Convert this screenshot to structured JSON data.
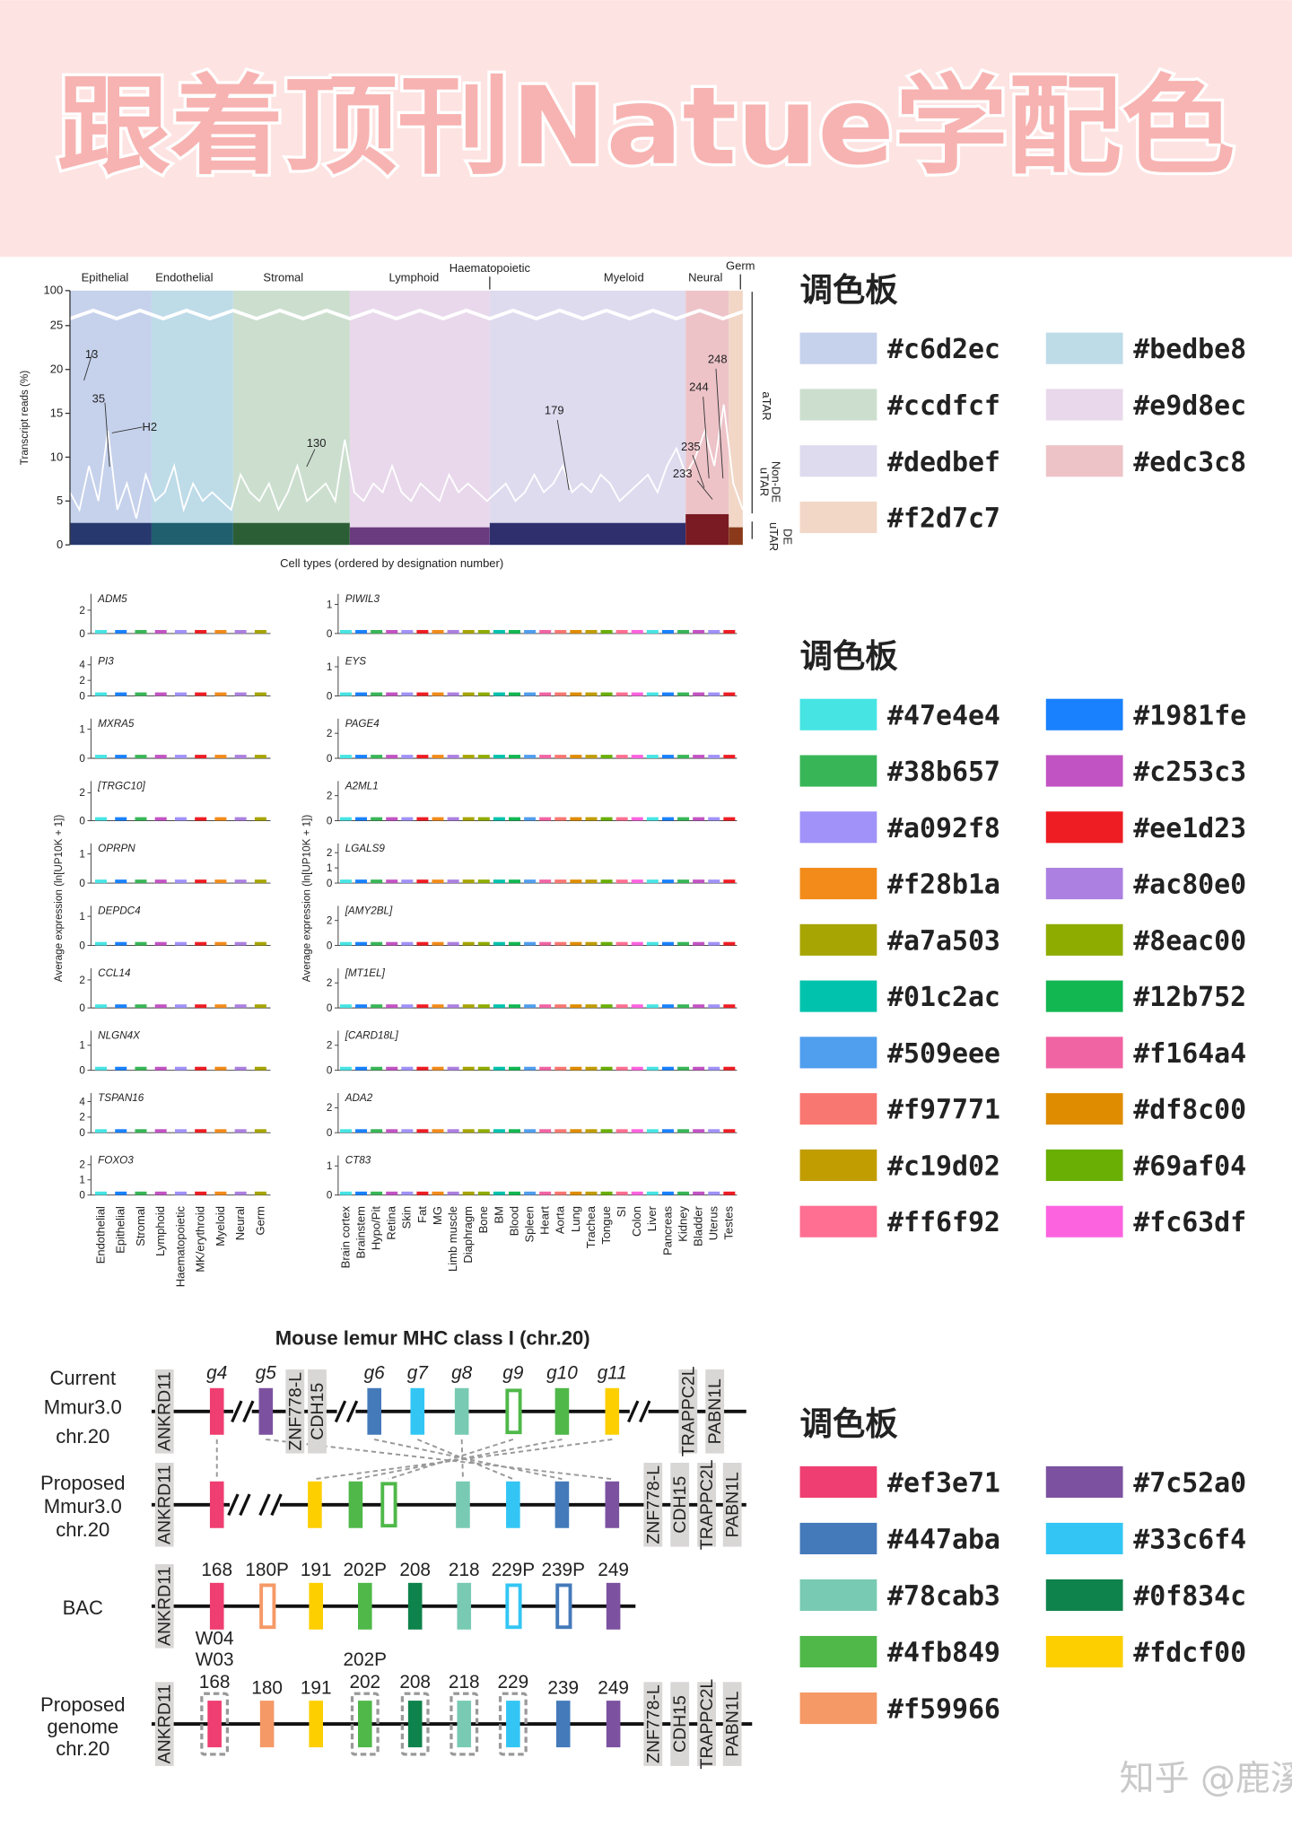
{
  "header": {
    "title": "跟着顶刊Natue学配色"
  },
  "chart_data": {
    "type": "line",
    "ylabel": "Transcript reads (%)",
    "xlabel": "Cell types (ordered by designation number)",
    "ylim": [
      0,
      100
    ],
    "axis_break": [
      25,
      100
    ],
    "yticks": [
      0,
      5,
      10,
      15,
      20,
      25,
      100
    ],
    "bands": [
      {
        "name": "Epithelial",
        "color": "#c6d2ec",
        "dark": "#26386e",
        "base": 2.5
      },
      {
        "name": "Endothelial",
        "color": "#bedbe8",
        "dark": "#1f5f6e",
        "base": 2.5
      },
      {
        "name": "Stromal",
        "color": "#ccdfcf",
        "dark": "#2c5e36",
        "base": 2.5
      },
      {
        "name": "Lymphoid",
        "color": "#e9d8ec",
        "dark": "#6a3b7e",
        "base": 2
      },
      {
        "name": "Myeloid",
        "color": "#dedbef",
        "dark": "#2f2f6e",
        "base": 2.5
      },
      {
        "name": "Neural",
        "color": "#edc3c8",
        "dark": "#7a1a22",
        "base": 3.5
      },
      {
        "name": "Germ",
        "color": "#f2d7c7",
        "dark": "#8a3a1a",
        "base": 2
      }
    ],
    "top_label": "Haematopoietic",
    "annotations": [
      "13",
      "35",
      "H2",
      "130",
      "179",
      "235",
      "233",
      "244",
      "248"
    ],
    "side_labels": [
      "aTAR",
      "Non-DE",
      "uTAR",
      "DE",
      "uTAR"
    ],
    "series": [
      {
        "color": "#ffffff",
        "values": [
          6,
          4,
          9,
          5,
          13,
          4,
          7,
          3,
          8,
          5,
          6,
          9,
          4,
          7,
          5,
          6,
          5,
          4,
          8,
          6,
          5,
          7,
          4,
          6,
          9,
          5,
          6,
          7,
          5,
          12,
          6,
          5,
          7,
          6,
          9,
          6,
          5,
          7,
          6,
          5,
          8,
          6,
          7,
          6,
          5,
          6,
          7,
          5,
          6,
          8,
          6,
          7,
          9,
          6,
          7,
          6,
          8,
          7,
          5,
          6,
          7,
          8,
          6,
          9,
          11,
          8,
          10,
          13,
          9,
          16,
          7,
          4
        ]
      }
    ]
  },
  "strips": {
    "ylabel": "Average expression (ln[UP10K + 1])",
    "left": {
      "categories": [
        "Endothelial",
        "Epithelial",
        "Stromal",
        "Lymphoid",
        "Haematopoietic",
        "MK/erythroid",
        "Myeloid",
        "Neural",
        "Germ"
      ],
      "genes": [
        {
          "name": "ADM5",
          "ylim": [
            0,
            3
          ],
          "yticks": [
            0,
            2
          ]
        },
        {
          "name": "PI3",
          "ylim": [
            0,
            4.5
          ],
          "yticks": [
            0,
            2,
            4
          ]
        },
        {
          "name": "MXRA5",
          "ylim": [
            0,
            1.2
          ],
          "yticks": [
            0,
            1
          ]
        },
        {
          "name": "[TRGC10]",
          "ylim": [
            0,
            2.5
          ],
          "yticks": [
            0,
            2
          ]
        },
        {
          "name": "OPRPN",
          "ylim": [
            0,
            1.2
          ],
          "yticks": [
            0,
            1
          ]
        },
        {
          "name": "DEPDC4",
          "ylim": [
            0,
            1.2
          ],
          "yticks": [
            0,
            1
          ]
        },
        {
          "name": "CCL14",
          "ylim": [
            0,
            2.5
          ],
          "yticks": [
            0,
            2
          ]
        },
        {
          "name": "NLGN4X",
          "ylim": [
            0,
            1.4
          ],
          "yticks": [
            0,
            1
          ]
        },
        {
          "name": "TSPAN16",
          "ylim": [
            0,
            4.5
          ],
          "yticks": [
            0,
            2,
            4
          ]
        },
        {
          "name": "FOXO3",
          "ylim": [
            0,
            2.3
          ],
          "yticks": [
            0,
            1,
            2
          ]
        }
      ]
    },
    "right": {
      "categories": [
        "Brain cortex",
        "Brainstem",
        "Hypo/Pit",
        "Retina",
        "Skin",
        "Fat",
        "MG",
        "Limb muscle",
        "Diaphragm",
        "Bone",
        "BM",
        "Blood",
        "Spleen",
        "Heart",
        "Aorta",
        "Lung",
        "Trachea",
        "Tongue",
        "SI",
        "Colon",
        "Liver",
        "Pancreas",
        "Kidney",
        "Bladder",
        "Uterus",
        "Testes"
      ],
      "genes": [
        {
          "name": "PIWIL3",
          "ylim": [
            0,
            1.2
          ],
          "yticks": [
            0,
            1
          ]
        },
        {
          "name": "EYS",
          "ylim": [
            0,
            1.2
          ],
          "yticks": [
            0,
            1
          ]
        },
        {
          "name": "PAGE4",
          "ylim": [
            0,
            2.8
          ],
          "yticks": [
            0,
            2
          ]
        },
        {
          "name": "A2ML1",
          "ylim": [
            0,
            2.8
          ],
          "yticks": [
            0,
            2
          ]
        },
        {
          "name": "LGALS9",
          "ylim": [
            0,
            2.3
          ],
          "yticks": [
            0,
            1,
            2
          ]
        },
        {
          "name": "[AMY2BL]",
          "ylim": [
            0,
            2.8
          ],
          "yticks": [
            0,
            2
          ]
        },
        {
          "name": "[MT1EL]",
          "ylim": [
            0,
            2.8
          ],
          "yticks": [
            0,
            2
          ]
        },
        {
          "name": "[CARD18L]",
          "ylim": [
            0,
            2.8
          ],
          "yticks": [
            0,
            2
          ]
        },
        {
          "name": "ADA2",
          "ylim": [
            0,
            2.8
          ],
          "yticks": [
            0,
            2
          ]
        },
        {
          "name": "CT83",
          "ylim": [
            0,
            1.2
          ],
          "yticks": [
            0,
            1
          ]
        }
      ]
    }
  },
  "diagram": {
    "title": "Mouse lemur MHC class I (chr.20)",
    "rows": [
      {
        "label": [
          "Current",
          "Mmur3.0",
          "chr.20"
        ],
        "items": [
          {
            "kind": "gray",
            "label": "ANKRD11"
          },
          {
            "kind": "gene",
            "label": "g4",
            "color": "#ef3e71"
          },
          {
            "kind": "break"
          },
          {
            "kind": "gene",
            "label": "g5",
            "color": "#7c52a0"
          },
          {
            "kind": "gray",
            "label": "ZNF778-L"
          },
          {
            "kind": "gray",
            "label": "CDH15"
          },
          {
            "kind": "break"
          },
          {
            "kind": "gene",
            "label": "g6",
            "color": "#447aba"
          },
          {
            "kind": "gene",
            "label": "g7",
            "color": "#33c6f4"
          },
          {
            "kind": "gene",
            "label": "g8",
            "color": "#78cab3"
          },
          {
            "kind": "gene",
            "label": "g9",
            "color": "#4fb849",
            "style": "outline"
          },
          {
            "kind": "gene",
            "label": "g10",
            "color": "#4fb849"
          },
          {
            "kind": "gene",
            "label": "g11",
            "color": "#fdcf00"
          },
          {
            "kind": "break"
          },
          {
            "kind": "gray",
            "label": "TRAPPC2L"
          },
          {
            "kind": "gray",
            "label": "PABN1L"
          }
        ]
      },
      {
        "label": [
          "Proposed",
          "Mmur3.0",
          "chr.20"
        ],
        "items": [
          {
            "kind": "gray",
            "label": "ANKRD11"
          },
          {
            "kind": "gene",
            "color": "#ef3e71"
          },
          {
            "kind": "break"
          },
          {
            "kind": "break"
          },
          {
            "kind": "gene",
            "color": "#fdcf00"
          },
          {
            "kind": "gene",
            "color": "#4fb849"
          },
          {
            "kind": "gene",
            "color": "#4fb849",
            "style": "outline"
          },
          {
            "kind": "gene",
            "color": "#78cab3"
          },
          {
            "kind": "gene",
            "color": "#33c6f4"
          },
          {
            "kind": "gene",
            "color": "#447aba"
          },
          {
            "kind": "gene",
            "color": "#7c52a0"
          },
          {
            "kind": "gray",
            "label": "ZNF778-L"
          },
          {
            "kind": "gray",
            "label": "CDH15"
          },
          {
            "kind": "gray",
            "label": "TRAPPC2L"
          },
          {
            "kind": "gray",
            "label": "PABN1L"
          }
        ]
      },
      {
        "label": [
          "BAC"
        ],
        "items": [
          {
            "kind": "gray",
            "label": "ANKRD11"
          },
          {
            "kind": "gene",
            "label": "168",
            "color": "#ef3e71"
          },
          {
            "kind": "gene",
            "label": "180P",
            "color": "#f59966",
            "style": "outline"
          },
          {
            "kind": "gene",
            "label": "191",
            "color": "#fdcf00"
          },
          {
            "kind": "gene",
            "label": "202P",
            "color": "#4fb849"
          },
          {
            "kind": "gene",
            "label": "208",
            "color": "#0f834c"
          },
          {
            "kind": "gene",
            "label": "218",
            "color": "#78cab3"
          },
          {
            "kind": "gene",
            "label": "229P",
            "color": "#33c6f4",
            "style": "outline"
          },
          {
            "kind": "gene",
            "label": "239P",
            "color": "#447aba",
            "style": "outline"
          },
          {
            "kind": "gene",
            "label": "249",
            "color": "#7c52a0"
          }
        ]
      },
      {
        "label": [
          "Proposed",
          "genome",
          "chr.20"
        ],
        "items": [
          {
            "kind": "gray",
            "label": "ANKRD11"
          },
          {
            "kind": "gene",
            "label": "168",
            "color": "#ef3e71",
            "boxed": true,
            "above": [
              "W04",
              "W03"
            ]
          },
          {
            "kind": "gene",
            "label": "180",
            "color": "#f59966"
          },
          {
            "kind": "gene",
            "label": "191",
            "color": "#fdcf00"
          },
          {
            "kind": "gene",
            "label": "202",
            "color": "#4fb849",
            "boxed": true,
            "above": [
              "202P"
            ]
          },
          {
            "kind": "gene",
            "label": "208",
            "color": "#0f834c",
            "boxed": true
          },
          {
            "kind": "gene",
            "label": "218",
            "color": "#78cab3",
            "boxed": true
          },
          {
            "kind": "gene",
            "label": "229",
            "color": "#33c6f4",
            "boxed": true
          },
          {
            "kind": "gene",
            "label": "239",
            "color": "#447aba"
          },
          {
            "kind": "gene",
            "label": "249",
            "color": "#7c52a0"
          },
          {
            "kind": "gray",
            "label": "ZNF778-L"
          },
          {
            "kind": "gray",
            "label": "CDH15"
          },
          {
            "kind": "gray",
            "label": "TRAPPC2L"
          },
          {
            "kind": "gray",
            "label": "PABN1L"
          }
        ]
      }
    ]
  },
  "palettes": [
    {
      "title": "调色板",
      "colors": [
        "#c6d2ec",
        "#bedbe8",
        "#ccdfcf",
        "#e9d8ec",
        "#dedbef",
        "#edc3c8",
        "#f2d7c7"
      ]
    },
    {
      "title": "调色板",
      "colors": [
        "#47e4e4",
        "#1981fe",
        "#38b657",
        "#c253c3",
        "#a092f8",
        "#ee1d23",
        "#f28b1a",
        "#ac80e0",
        "#a7a503",
        "#8eac00",
        "#01c2ac",
        "#12b752",
        "#509eee",
        "#f164a4",
        "#f97771",
        "#df8c00",
        "#c19d02",
        "#69af04",
        "#ff6f92",
        "#fc63df"
      ]
    },
    {
      "title": "调色板",
      "colors": [
        "#ef3e71",
        "#7c52a0",
        "#447aba",
        "#33c6f4",
        "#78cab3",
        "#0f834c",
        "#4fb849",
        "#fdcf00",
        "#f59966"
      ]
    }
  ],
  "watermark": "知乎 @鹿溪学姐"
}
